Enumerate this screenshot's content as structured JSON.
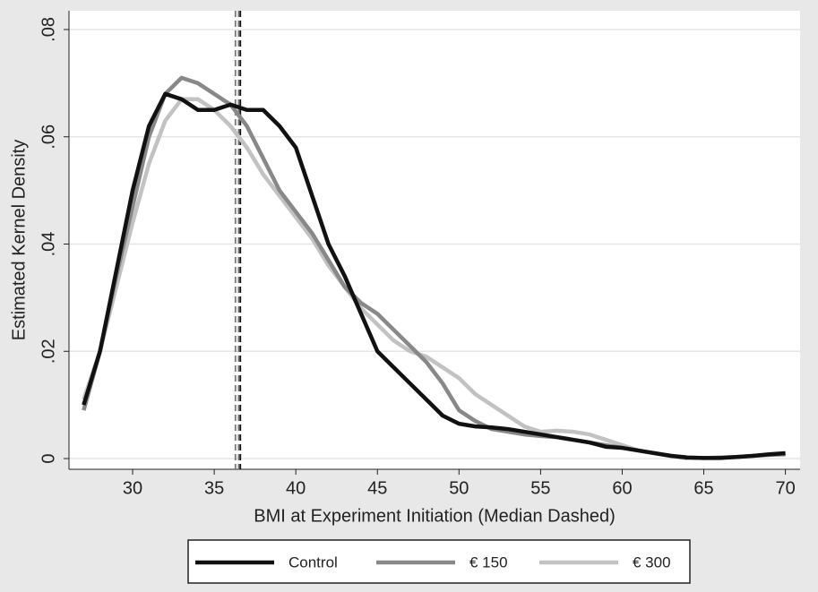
{
  "chart_data": {
    "type": "line",
    "x_label": "BMI at Experiment Initiation (Median Dashed)",
    "y_label": "Estimated Kernel Density",
    "x": [
      27,
      28,
      29,
      30,
      31,
      32,
      33,
      34,
      35,
      36,
      37,
      38,
      39,
      40,
      41,
      42,
      43,
      44,
      45,
      46,
      47,
      48,
      49,
      50,
      51,
      52,
      53,
      54,
      55,
      56,
      57,
      58,
      59,
      60,
      61,
      62,
      63,
      64,
      65,
      66,
      67,
      68,
      69,
      70
    ],
    "series": [
      {
        "name": "Control",
        "color": "#111111",
        "median": 36.6,
        "values": [
          0.01,
          0.02,
          0.035,
          0.05,
          0.062,
          0.068,
          0.067,
          0.065,
          0.065,
          0.066,
          0.065,
          0.065,
          0.062,
          0.058,
          0.049,
          0.04,
          0.034,
          0.027,
          0.02,
          0.017,
          0.014,
          0.011,
          0.008,
          0.0065,
          0.006,
          0.0058,
          0.0055,
          0.005,
          0.0045,
          0.004,
          0.0035,
          0.003,
          0.0022,
          0.002,
          0.0015,
          0.001,
          0.0005,
          0.0002,
          0.0001,
          0.0001,
          0.0003,
          0.0005,
          0.0008,
          0.001
        ]
      },
      {
        "name": "€ 150",
        "color": "#888888",
        "median": 36.5,
        "values": [
          0.009,
          0.02,
          0.034,
          0.047,
          0.06,
          0.068,
          0.071,
          0.07,
          0.068,
          0.066,
          0.062,
          0.056,
          0.05,
          0.046,
          0.042,
          0.037,
          0.032,
          0.029,
          0.027,
          0.024,
          0.021,
          0.018,
          0.014,
          0.009,
          0.007,
          0.0055,
          0.005,
          0.0045,
          0.0042,
          0.004,
          0.0035,
          0.003,
          0.0025,
          0.002,
          0.0015,
          0.001,
          0.0005,
          0.0002,
          0.0001,
          0.0002,
          0.0003,
          0.0005,
          0.0007,
          0.0008
        ]
      },
      {
        "name": "€ 300",
        "color": "#c2c2c2",
        "median": 36.3,
        "values": [
          0.011,
          0.02,
          0.032,
          0.044,
          0.055,
          0.063,
          0.067,
          0.067,
          0.065,
          0.062,
          0.058,
          0.053,
          0.049,
          0.045,
          0.041,
          0.036,
          0.032,
          0.028,
          0.025,
          0.022,
          0.02,
          0.019,
          0.017,
          0.015,
          0.012,
          0.01,
          0.008,
          0.006,
          0.005,
          0.0052,
          0.005,
          0.0045,
          0.0035,
          0.0025,
          0.0015,
          0.001,
          0.0005,
          0,
          null,
          null,
          null,
          null,
          null,
          null
        ]
      }
    ],
    "xlim": [
      26.1,
      70.9
    ],
    "xticks": [
      30,
      35,
      40,
      45,
      50,
      55,
      60,
      65,
      70
    ],
    "ylim": [
      -0.002,
      0.0835
    ],
    "yticks": [
      0,
      {
        "value": 0.02,
        "label": ".02"
      },
      {
        "value": 0.04,
        "label": ".04"
      },
      {
        "value": 0.06,
        "label": ".06"
      },
      {
        "value": 0.08,
        "label": ".08"
      }
    ],
    "grid": true,
    "legend": "bottom"
  }
}
